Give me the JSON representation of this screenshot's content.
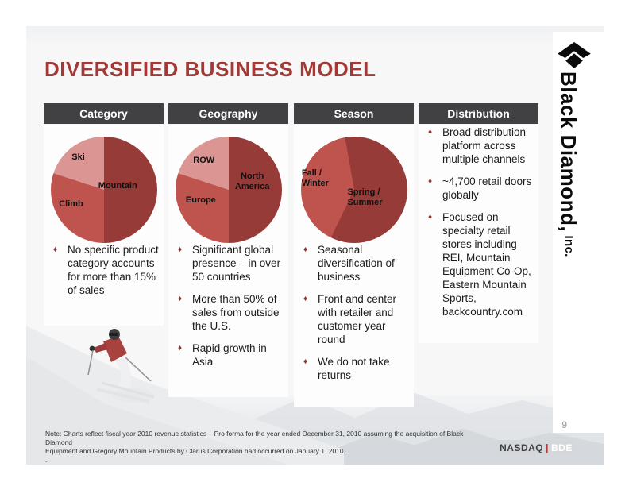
{
  "slide": {
    "title": "DIVERSIFIED BUSINESS MODEL",
    "page_number": "9",
    "note_line1": "Note: Charts reflect fiscal year 2010 revenue statistics – Pro forma for the year ended December 31, 2010 assuming the acquisition of Black Diamond",
    "note_line2": "Equipment and Gregory Mountain Products by Clarus Corporation had occurred on January 1, 2010.",
    "note_line3": "."
  },
  "branding": {
    "company_main": "Black Diamond,",
    "company_suffix": " Inc.",
    "logo_name": "black-diamond-logo",
    "ticker_exchange": "NASDAQ",
    "ticker_separator": "|",
    "ticker_symbol": "BDE"
  },
  "glyphs": {
    "bullet": "♦"
  },
  "colors": {
    "title_red": "#a23936",
    "header_bar": "#414042",
    "pie_dark": "#963b38",
    "pie_medium": "#bf544f",
    "pie_light": "#db9593",
    "bullet_diamond": "#8b3732",
    "ticker_pipe_red": "#b5342f"
  },
  "columns": [
    {
      "header": "Category",
      "bullets": [
        "No specific product category accounts for more than 15% of sales"
      ]
    },
    {
      "header": "Geography",
      "bullets": [
        "Significant global presence – in over 50 countries",
        "More than 50% of sales from outside the U.S.",
        "Rapid growth in Asia"
      ]
    },
    {
      "header": "Season",
      "bullets": [
        "Seasonal diversification of business",
        "Front and center with retailer and customer year round",
        "We do not take returns"
      ]
    },
    {
      "header": "Distribution",
      "bullets": [
        "Broad distribution platform across multiple channels",
        "~4,700 retail doors globally",
        "Focused on specialty retail stores including REI, Mountain Equipment Co-Op, Eastern Mountain Sports, backcountry.com"
      ]
    }
  ],
  "chart_data": [
    {
      "type": "pie",
      "title": "Category",
      "start_angle_deg": 0,
      "slices": [
        {
          "label": "Mountain",
          "value": 50,
          "color": "#963b38"
        },
        {
          "label": "Climb",
          "value": 30,
          "color": "#bf544f"
        },
        {
          "label": "Ski",
          "value": 20,
          "color": "#db9593"
        }
      ]
    },
    {
      "type": "pie",
      "title": "Geography",
      "start_angle_deg": 0,
      "slices": [
        {
          "label": "North America",
          "value": 50,
          "color": "#963b38"
        },
        {
          "label": "Europe",
          "value": 30,
          "color": "#bf544f"
        },
        {
          "label": "ROW",
          "value": 20,
          "color": "#db9593"
        }
      ]
    },
    {
      "type": "pie",
      "title": "Season",
      "start_angle_deg": -10,
      "slices": [
        {
          "label": "Spring / Summer",
          "value": 60,
          "color": "#963b38"
        },
        {
          "label": "Fall / Winter",
          "value": 40,
          "color": "#bf544f"
        }
      ]
    }
  ]
}
